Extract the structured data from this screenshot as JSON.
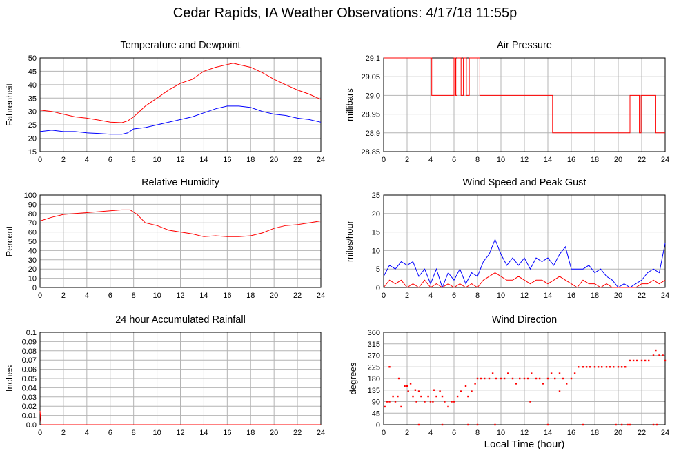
{
  "title": "Cedar Rapids, IA Weather Observations: 4/17/18 11:55p",
  "xlabel": "Local Time (hour)",
  "colors": {
    "red": "#ff0000",
    "blue": "#0000ff",
    "grid": "#b4b4b4",
    "axis": "#000000"
  },
  "chart_data": [
    {
      "type": "line",
      "title": "Temperature and Dewpoint",
      "ylabel": "Fahrenheit",
      "xlim": [
        0,
        24
      ],
      "ylim": [
        15,
        50
      ],
      "x_ticks": [
        0,
        2,
        4,
        6,
        8,
        10,
        12,
        14,
        16,
        18,
        20,
        22,
        24
      ],
      "y_ticks": [
        15,
        20,
        25,
        30,
        35,
        40,
        45,
        50
      ],
      "grid": true,
      "series": [
        {
          "color": "#ff0000",
          "x": [
            0,
            1,
            2,
            3,
            4,
            5,
            6,
            7,
            7.5,
            8,
            9,
            10,
            11,
            12,
            13,
            14,
            15,
            16,
            16.5,
            17,
            18,
            19,
            20,
            21,
            22,
            23,
            24
          ],
          "y": [
            30.5,
            30,
            29,
            28,
            27.5,
            26.8,
            26,
            25.8,
            26.5,
            28,
            32,
            35,
            38,
            40.5,
            42,
            45,
            46.5,
            47.5,
            48,
            47.5,
            46.5,
            44.5,
            42,
            40,
            38,
            36.5,
            34.5
          ]
        },
        {
          "color": "#0000ff",
          "x": [
            0,
            1,
            2,
            3,
            4,
            5,
            6,
            7,
            7.5,
            8,
            9,
            10,
            11,
            12,
            13,
            14,
            15,
            16,
            17,
            18,
            19,
            20,
            21,
            22,
            23,
            24
          ],
          "y": [
            22.5,
            23,
            22.5,
            22.5,
            22,
            21.8,
            21.5,
            21.5,
            22,
            23.5,
            24,
            25,
            26,
            27,
            28,
            29.5,
            31,
            32,
            32,
            31.5,
            30,
            29,
            28.5,
            27.5,
            27,
            26
          ]
        }
      ]
    },
    {
      "type": "line",
      "title": "Air Pressure",
      "ylabel": "millibars",
      "xlim": [
        0,
        24
      ],
      "ylim": [
        28.85,
        29.1
      ],
      "x_ticks": [
        0,
        2,
        4,
        6,
        8,
        10,
        12,
        14,
        16,
        18,
        20,
        22,
        24
      ],
      "y_ticks": [
        "28.85",
        "28.9",
        "28.95",
        "29.0",
        "29.05",
        "29.1"
      ],
      "grid": true,
      "series": [
        {
          "color": "#ff0000",
          "step": true,
          "x": [
            0,
            4.1,
            4.1,
            6.0,
            6.0,
            6.15,
            6.15,
            6.25,
            6.25,
            6.6,
            6.6,
            6.8,
            6.8,
            7.05,
            7.05,
            7.3,
            7.3,
            7.6,
            7.6,
            8.2,
            8.2,
            14.4,
            14.4,
            21.0,
            21.0,
            21.8,
            21.8,
            21.95,
            21.95,
            23.2,
            23.2,
            24
          ],
          "y": [
            29.1,
            29.1,
            29.0,
            29.0,
            29.1,
            29.1,
            29.0,
            29.0,
            29.1,
            29.1,
            29.0,
            29.0,
            29.1,
            29.1,
            29.0,
            29.0,
            29.1,
            29.1,
            29.1,
            29.1,
            29.0,
            29.0,
            28.9,
            28.9,
            29.0,
            29.0,
            28.9,
            28.9,
            29.0,
            29.0,
            28.9,
            28.9
          ]
        }
      ]
    },
    {
      "type": "line",
      "title": "Relative Humidity",
      "ylabel": "Percent",
      "xlim": [
        0,
        24
      ],
      "ylim": [
        0,
        100
      ],
      "x_ticks": [
        0,
        2,
        4,
        6,
        8,
        10,
        12,
        14,
        16,
        18,
        20,
        22,
        24
      ],
      "y_ticks": [
        0,
        10,
        20,
        30,
        40,
        50,
        60,
        70,
        80,
        90,
        100
      ],
      "grid": true,
      "series": [
        {
          "color": "#ff0000",
          "x": [
            0,
            1,
            2,
            3,
            4,
            5,
            6,
            7,
            7.7,
            8.3,
            9,
            10,
            11,
            12,
            13,
            14,
            15,
            16,
            17,
            18,
            19,
            20,
            21,
            22,
            23,
            24
          ],
          "y": [
            72,
            76,
            79,
            80,
            81,
            82,
            83,
            84,
            84,
            79,
            70,
            67,
            62,
            60,
            58,
            55,
            56,
            55,
            55,
            56,
            59,
            64,
            67,
            68,
            70,
            72
          ]
        }
      ]
    },
    {
      "type": "line",
      "title": "Wind Speed and Peak Gust",
      "ylabel": "miles/hour",
      "xlim": [
        0,
        24
      ],
      "ylim": [
        0,
        25
      ],
      "x_ticks": [
        0,
        2,
        4,
        6,
        8,
        10,
        12,
        14,
        16,
        18,
        20,
        22,
        24
      ],
      "y_ticks": [
        0,
        5,
        10,
        15,
        20,
        25
      ],
      "grid": true,
      "series": [
        {
          "color": "#0000ff",
          "x": [
            0,
            0.5,
            1,
            1.5,
            2,
            2.5,
            3,
            3.5,
            4,
            4.5,
            5,
            5.5,
            6,
            6.5,
            7,
            7.5,
            8,
            8.5,
            9,
            9.5,
            10,
            10.5,
            11,
            11.5,
            12,
            12.5,
            13,
            13.5,
            14,
            14.5,
            15,
            15.5,
            16,
            16.5,
            17,
            17.5,
            18,
            18.5,
            19,
            19.5,
            20,
            20.5,
            21,
            21.5,
            22,
            22.5,
            23,
            23.5,
            24
          ],
          "y": [
            3,
            6,
            5,
            7,
            6,
            7,
            3,
            5,
            1,
            5,
            0,
            4,
            2,
            5,
            1,
            4,
            3,
            7,
            9,
            13,
            9,
            6,
            8,
            6,
            8,
            5,
            8,
            7,
            8,
            6,
            9,
            11,
            5,
            5,
            5,
            6,
            4,
            5,
            3,
            2,
            0,
            1,
            0,
            1,
            2,
            4,
            5,
            4,
            12
          ]
        },
        {
          "color": "#ff0000",
          "x": [
            0,
            0.5,
            1,
            1.5,
            2,
            2.5,
            3,
            3.5,
            4,
            4.5,
            5,
            5.5,
            6,
            6.5,
            7,
            7.5,
            8,
            8.5,
            9,
            9.5,
            10,
            10.5,
            11,
            11.5,
            12,
            12.5,
            13,
            13.5,
            14,
            14.5,
            15,
            15.5,
            16,
            16.5,
            17,
            17.5,
            18,
            18.5,
            19,
            19.5,
            20,
            20.5,
            21,
            21.5,
            22,
            22.5,
            23,
            23.5,
            24
          ],
          "y": [
            0,
            2,
            1,
            2,
            0,
            1,
            0,
            2,
            0,
            1,
            0,
            1,
            0,
            1,
            0,
            1,
            0,
            2,
            3,
            4,
            3,
            2,
            2,
            3,
            2,
            1,
            2,
            2,
            1,
            2,
            3,
            2,
            1,
            0,
            2,
            1,
            1,
            0,
            1,
            0,
            0,
            0,
            0,
            0,
            1,
            1,
            2,
            1,
            2
          ]
        }
      ]
    },
    {
      "type": "line",
      "title": "24 hour Accumulated Rainfall",
      "ylabel": "Inches",
      "xlim": [
        0,
        24
      ],
      "ylim": [
        0,
        0.1
      ],
      "x_ticks": [
        0,
        2,
        4,
        6,
        8,
        10,
        12,
        14,
        16,
        18,
        20,
        22,
        24
      ],
      "y_ticks": [
        "0.0",
        "0.01",
        "0.02",
        "0.03",
        "0.04",
        "0.05",
        "0.06",
        "0.07",
        "0.08",
        "0.09",
        "0.1"
      ],
      "grid": true,
      "series": [
        {
          "color": "#ff0000",
          "x": [
            0,
            0.1,
            24
          ],
          "y": [
            0.015,
            0,
            0
          ]
        }
      ]
    },
    {
      "type": "scatter",
      "title": "Wind Direction",
      "ylabel": "degrees",
      "xlim": [
        0,
        24
      ],
      "ylim": [
        0,
        360
      ],
      "x_ticks": [
        0,
        2,
        4,
        6,
        8,
        10,
        12,
        14,
        16,
        18,
        20,
        22,
        24
      ],
      "y_ticks": [
        0,
        45,
        90,
        135,
        180,
        225,
        270,
        315,
        360
      ],
      "grid": true,
      "series": [
        {
          "color": "#ff0000",
          "x": [
            0.1,
            0.3,
            0.5,
            0.8,
            1.0,
            1.2,
            1.5,
            1.8,
            2.0,
            2.1,
            2.3,
            2.5,
            2.8,
            3.0,
            3.2,
            3.5,
            3.8,
            4.0,
            4.2,
            4.5,
            4.8,
            5.0,
            5.2,
            5.5,
            5.8,
            6.0,
            6.3,
            6.6,
            7.0,
            7.2,
            7.5,
            7.8,
            8.0,
            8.3,
            8.6,
            9.0,
            9.3,
            9.6,
            10.0,
            10.3,
            10.6,
            11.0,
            11.3,
            11.6,
            12.0,
            12.3,
            12.6,
            13.0,
            13.3,
            13.6,
            14.0,
            14.3,
            14.6,
            15.0,
            15.3,
            15.6,
            16.0,
            16.3,
            16.6,
            17.0,
            17.3,
            17.6,
            18.0,
            18.3,
            18.6,
            19.0,
            19.3,
            19.6,
            20.0,
            20.3,
            20.6,
            21.0,
            21.3,
            21.6,
            22.0,
            22.3,
            22.6,
            23.0,
            23.2,
            23.5,
            23.8,
            24.0,
            3.0,
            5.0,
            7.2,
            8.0,
            9.5,
            14.0,
            17.0,
            19.8,
            20.3,
            20.8,
            21.0,
            23.0,
            23.3,
            12.5,
            15.0,
            1.3,
            2.7,
            0.5,
            4.3
          ],
          "y": [
            70,
            90,
            90,
            110,
            90,
            110,
            70,
            150,
            150,
            130,
            160,
            110,
            90,
            130,
            110,
            90,
            110,
            90,
            90,
            110,
            130,
            110,
            90,
            70,
            90,
            90,
            110,
            130,
            150,
            110,
            130,
            160,
            180,
            180,
            180,
            180,
            200,
            180,
            180,
            180,
            200,
            180,
            160,
            180,
            180,
            180,
            200,
            180,
            180,
            160,
            180,
            200,
            180,
            200,
            180,
            160,
            180,
            200,
            225,
            225,
            225,
            225,
            225,
            225,
            225,
            225,
            225,
            225,
            225,
            225,
            225,
            250,
            250,
            250,
            250,
            250,
            250,
            270,
            290,
            270,
            270,
            250,
            0,
            0,
            0,
            0,
            0,
            0,
            0,
            0,
            0,
            0,
            0,
            0,
            0,
            90,
            130,
            180,
            135,
            225,
            135
          ]
        }
      ]
    }
  ]
}
